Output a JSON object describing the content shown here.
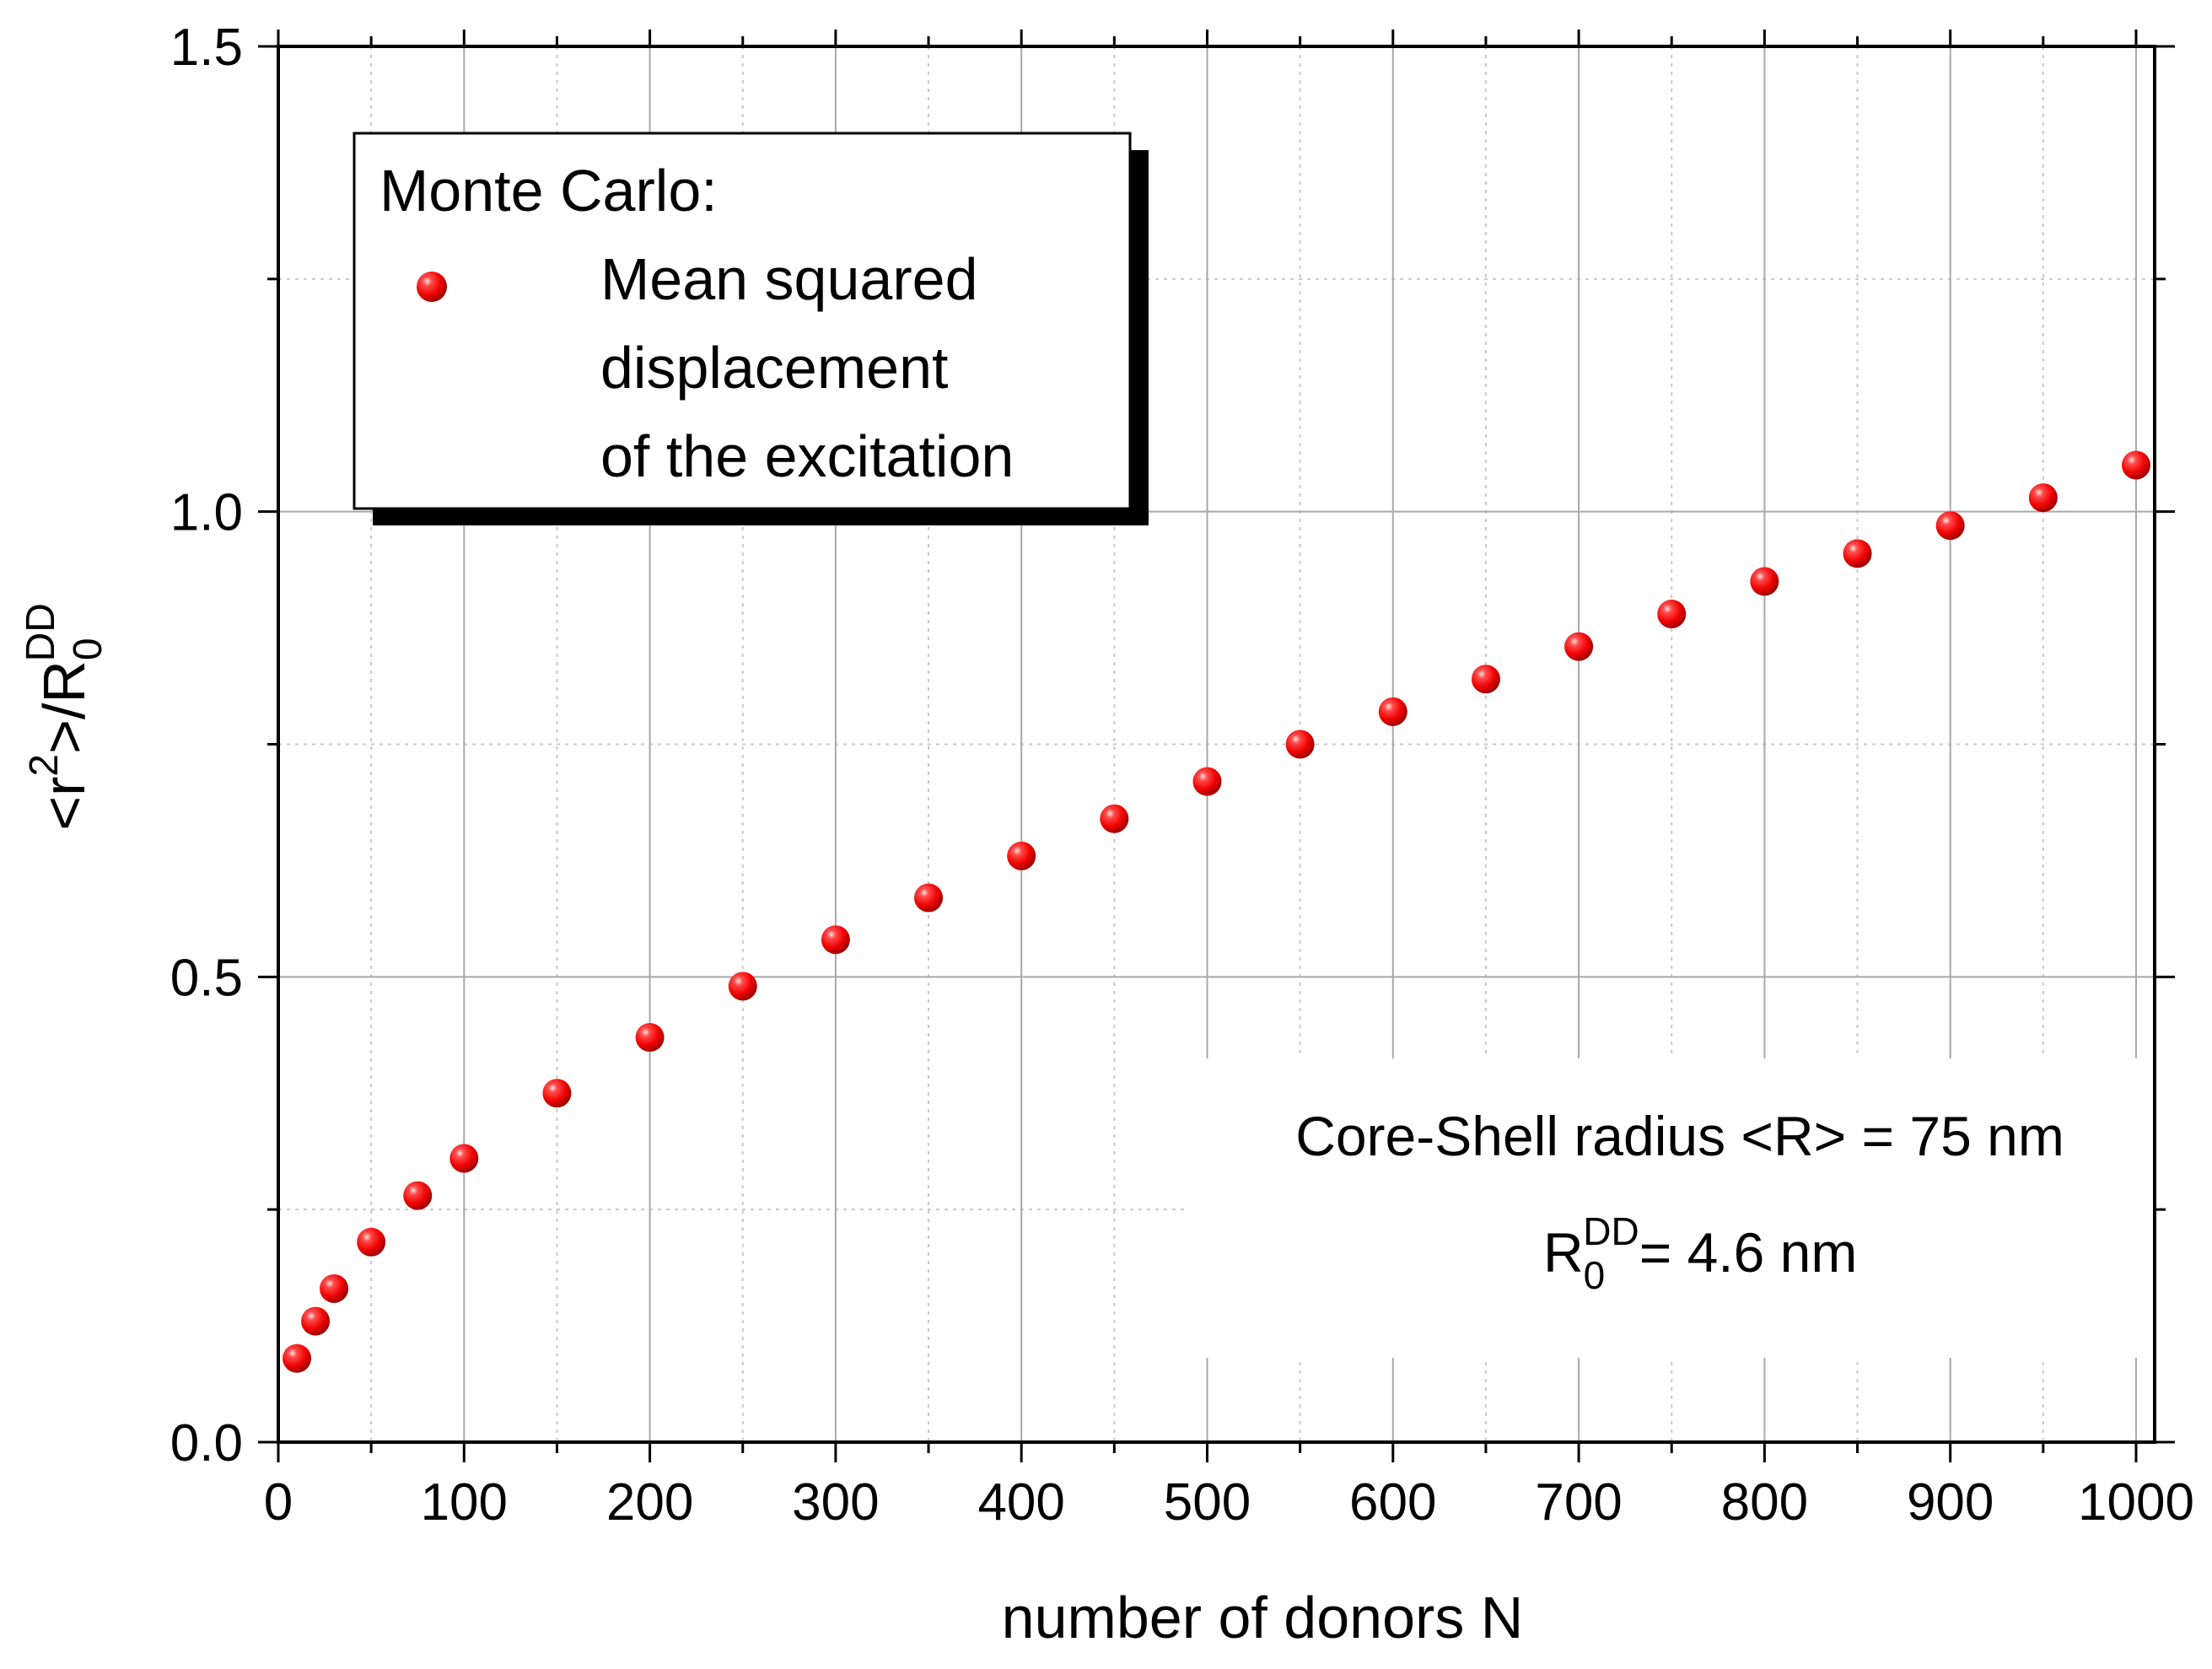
{
  "chart_data": {
    "type": "scatter",
    "x_axis": {
      "label": "number of donors N",
      "range": [
        0,
        1010
      ],
      "major_ticks": [
        0,
        100,
        200,
        300,
        400,
        500,
        600,
        700,
        800,
        900,
        1000
      ],
      "tick_labels": [
        "0",
        "100",
        "200",
        "300",
        "400",
        "500",
        "600",
        "700",
        "800",
        "900",
        "1000"
      ],
      "minor_step": 50
    },
    "y_axis": {
      "label_main": "<r",
      "label_sup1": "2",
      "label_mid": ">/R",
      "label_sub": "0",
      "label_sup2": "DD",
      "range": [
        0,
        1.5
      ],
      "major_ticks": [
        0,
        0.5,
        1.0,
        1.5
      ],
      "tick_labels": [
        "0.0",
        "0.5",
        "1.0",
        "1.5"
      ],
      "minor_step": 0.25
    },
    "grid": true,
    "legend": {
      "position": "top-left",
      "title": "Monte Carlo:",
      "entries": [
        {
          "lines": [
            "Mean squared",
            "displacement",
            "of the excitation"
          ],
          "marker": "red-sphere"
        }
      ]
    },
    "annotations": {
      "line1": "Core-Shell radius <R> = 75 nm",
      "line2_main": "R",
      "line2_sub": "0",
      "line2_sup": "DD",
      "line2_rest": "= 4.6 nm"
    },
    "series": [
      {
        "name": "Mean squared displacement of the excitation",
        "color": "#ff0000",
        "marker": "sphere",
        "points": [
          {
            "x": 10,
            "y": 0.09
          },
          {
            "x": 20,
            "y": 0.13
          },
          {
            "x": 30,
            "y": 0.165
          },
          {
            "x": 50,
            "y": 0.215
          },
          {
            "x": 75,
            "y": 0.265
          },
          {
            "x": 100,
            "y": 0.305
          },
          {
            "x": 150,
            "y": 0.375
          },
          {
            "x": 200,
            "y": 0.435
          },
          {
            "x": 250,
            "y": 0.49
          },
          {
            "x": 300,
            "y": 0.54
          },
          {
            "x": 350,
            "y": 0.585
          },
          {
            "x": 400,
            "y": 0.63
          },
          {
            "x": 450,
            "y": 0.67
          },
          {
            "x": 500,
            "y": 0.71
          },
          {
            "x": 550,
            "y": 0.75
          },
          {
            "x": 600,
            "y": 0.785
          },
          {
            "x": 650,
            "y": 0.82
          },
          {
            "x": 700,
            "y": 0.855
          },
          {
            "x": 750,
            "y": 0.89
          },
          {
            "x": 800,
            "y": 0.925
          },
          {
            "x": 850,
            "y": 0.955
          },
          {
            "x": 900,
            "y": 0.985
          },
          {
            "x": 950,
            "y": 1.015
          },
          {
            "x": 1000,
            "y": 1.05
          }
        ]
      }
    ]
  }
}
